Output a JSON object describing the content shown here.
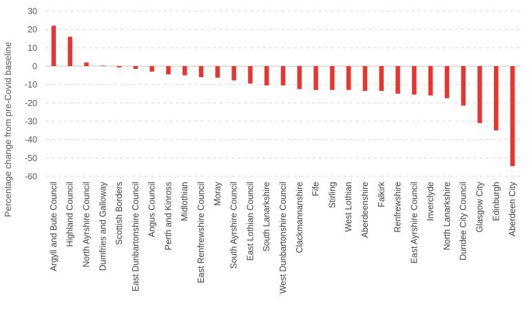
{
  "chart_data": {
    "type": "bar",
    "ylabel": "Percentage change from pre-Covid baseline",
    "ylim": [
      -60,
      30
    ],
    "yticks": [
      30,
      20,
      10,
      0,
      -10,
      -20,
      -30,
      -40,
      -50,
      -60
    ],
    "grid": true,
    "bar_color": "#e8352f",
    "categories": [
      "Argyll and Bute Council",
      "Highland Council",
      "North Ayrshire Council",
      "Dumfries and Galloway",
      "Scottish Borders",
      "East Dunbartonshire Council",
      "Angus Council",
      "Perth and Kinross",
      "Midlothian",
      "East Renfrewshire Council",
      "Moray",
      "South Ayrshire Council",
      "East Lothian Council",
      "South Lanarkshire",
      "West Dunbartonshire Council",
      "Clackmannanshire",
      "Fife",
      "Stirling",
      "West Lothian",
      "Aberdeenshire",
      "Falkirk",
      "Renfrewshire",
      "East Ayrshire Council",
      "Inverclyde",
      "North Lanarkshire",
      "Dundee City Council",
      "Glasgow City",
      "Edinburgh",
      "Aberdeen City"
    ],
    "values": [
      22,
      16,
      2,
      0.3,
      -0.7,
      -1.5,
      -3,
      -4.5,
      -5,
      -6,
      -6.3,
      -7.8,
      -9.5,
      -10.5,
      -10.5,
      -12.5,
      -13,
      -13,
      -13,
      -13.5,
      -13.5,
      -15,
      -15.5,
      -16,
      -17.5,
      -21.5,
      -31,
      -35,
      -54.5
    ]
  }
}
